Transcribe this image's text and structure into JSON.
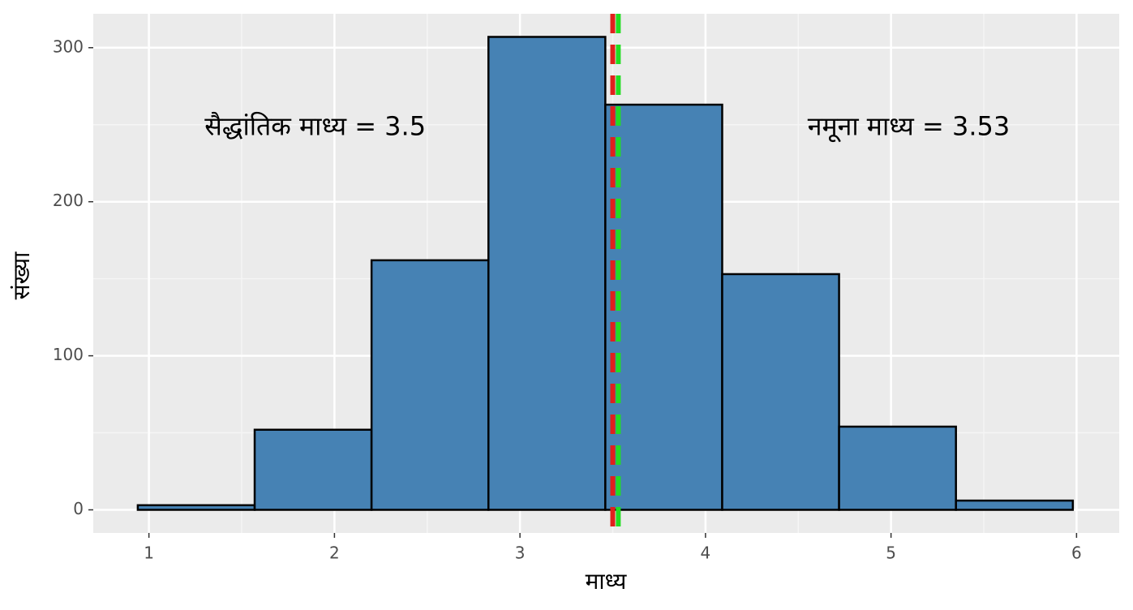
{
  "chart_data": {
    "type": "histogram",
    "x_label": "माध्य",
    "y_label": "संख्या",
    "bins": [
      0.94,
      1.57,
      2.2,
      2.83,
      3.46,
      4.09,
      4.72,
      5.35,
      5.98
    ],
    "counts": [
      3,
      52,
      162,
      307,
      263,
      153,
      54,
      6
    ],
    "color": "#4682b4",
    "xlim": [
      0.7,
      6.23
    ],
    "ylim": [
      -15,
      322
    ],
    "xticks": [
      1,
      2,
      3,
      4,
      5,
      6
    ],
    "yticks": [
      0,
      100,
      200,
      300
    ],
    "grid": true,
    "vlines": [
      {
        "value": 3.5,
        "color": "#e0201c",
        "label": "सैद्धांतिक माध्य = 3.5"
      },
      {
        "value": 3.53,
        "color": "#22dd22",
        "label": "नमूना माध्य = 3.53"
      }
    ]
  }
}
